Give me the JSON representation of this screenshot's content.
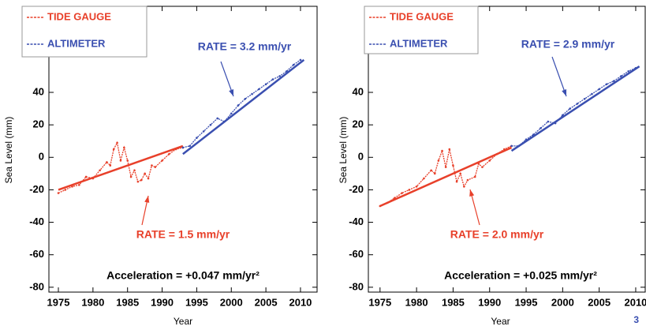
{
  "chart_data": [
    {
      "type": "line",
      "xlabel": "Year",
      "ylabel": "Sea Level (mm)",
      "xlim": [
        1973.63,
        2012.4
      ],
      "ylim": [
        -83,
        93
      ],
      "xticks": [
        1975,
        1980,
        1985,
        1990,
        1995,
        2000,
        2005,
        2010
      ],
      "yticks": [
        -80,
        -60,
        -40,
        -20,
        0,
        20,
        40
      ],
      "series": [
        {
          "name": "TIDE GAUGE",
          "color": "#e8402a",
          "x": [
            1975,
            1976,
            1977,
            1978,
            1979,
            1980,
            1981,
            1982,
            1982.5,
            1983,
            1983.5,
            1984,
            1984.5,
            1985,
            1985.5,
            1986,
            1986.5,
            1987,
            1987.5,
            1988,
            1988.5,
            1989,
            1990,
            1991,
            1992,
            1993
          ],
          "values": [
            -22,
            -20,
            -18,
            -17,
            -12,
            -13,
            -8,
            -3,
            -5,
            5,
            9,
            -2,
            6,
            -2,
            -12,
            -8,
            -15,
            -14,
            -10,
            -13,
            -5,
            -6,
            -2,
            2,
            5,
            6
          ],
          "trend": {
            "x": [
              1975,
              1993
            ],
            "values": [
              -20,
              7
            ]
          },
          "annotation": "RATE = 1.5 mm/yr"
        },
        {
          "name": "ALTIMETER",
          "color": "#3a4fb0",
          "x": [
            1993,
            1994,
            1995,
            1996,
            1997,
            1998,
            1999,
            2000,
            2001,
            2002,
            2003,
            2004,
            2005,
            2006,
            2007,
            2008,
            2009,
            2010
          ],
          "values": [
            6,
            7,
            12,
            16,
            20,
            24,
            22,
            27,
            32,
            36,
            39,
            42,
            45,
            48,
            50,
            53,
            57,
            60
          ],
          "trend": {
            "x": [
              1993,
              2010.5
            ],
            "values": [
              2,
              60
            ]
          },
          "annotation": "RATE = 3.2 mm/yr"
        }
      ],
      "acceleration": "Acceleration = +0.047 mm/yr²"
    },
    {
      "type": "line",
      "xlabel": "Year",
      "ylabel": "Sea Level (mm)",
      "xlim": [
        1973.4,
        2011.3
      ],
      "ylim": [
        -83,
        93
      ],
      "xticks": [
        1975,
        1980,
        1985,
        1990,
        1995,
        2000,
        2005,
        2010
      ],
      "yticks": [
        -80,
        -60,
        -40,
        -20,
        0,
        20,
        40
      ],
      "series": [
        {
          "name": "TIDE GAUGE",
          "color": "#e8402a",
          "x": [
            1975,
            1976,
            1977,
            1978,
            1979,
            1980,
            1981,
            1982,
            1982.5,
            1983,
            1983.5,
            1984,
            1984.5,
            1985,
            1985.5,
            1986,
            1986.5,
            1987,
            1988,
            1988.5,
            1989,
            1990,
            1991,
            1992,
            1993
          ],
          "values": [
            -30,
            -28,
            -25,
            -22,
            -20,
            -18,
            -13,
            -8,
            -10,
            -2,
            4,
            -6,
            5,
            -5,
            -15,
            -10,
            -18,
            -14,
            -12,
            -4,
            -6,
            -2,
            2,
            5,
            7
          ],
          "trend": {
            "x": [
              1975,
              1993
            ],
            "values": [
              -30,
              6
            ]
          },
          "annotation": "RATE = 2.0 mm/yr"
        },
        {
          "name": "ALTIMETER",
          "color": "#3a4fb0",
          "x": [
            1993,
            1994,
            1995,
            1996,
            1997,
            1998,
            1999,
            2000,
            2001,
            2002,
            2003,
            2004,
            2005,
            2006,
            2007,
            2008,
            2009,
            2010
          ],
          "values": [
            7,
            7,
            11,
            14,
            18,
            22,
            21,
            26,
            30,
            33,
            36,
            39,
            42,
            45,
            47,
            50,
            53,
            55
          ],
          "trend": {
            "x": [
              1993,
              2010.5
            ],
            "values": [
              4,
              56
            ]
          },
          "annotation": "RATE = 2.9 mm/yr"
        }
      ],
      "acceleration": "Acceleration = +0.025 mm/yr²"
    }
  ],
  "page_number": "3"
}
